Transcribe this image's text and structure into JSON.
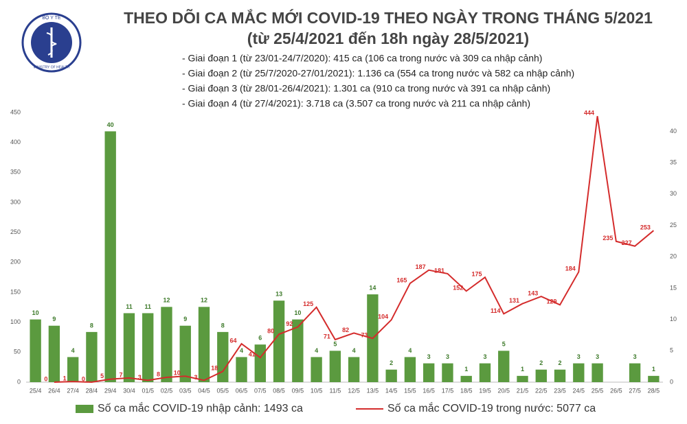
{
  "header": {
    "logo_top": "BỘ Y TẾ",
    "logo_bottom": "MINISTRY OF HEALTH",
    "notes": [
      "- Giai đoạn 1 (từ 23/01-24/7/2020): 415 ca (106 ca trong nước và 309 ca nhập cảnh)",
      "- Giai đoạn 2 (từ 25/7/2020-27/01/2021): 1.136 ca (554 ca trong nước và 582 ca nhập cảnh)",
      "- Giai đoạn 3 (từ 28/01-26/4/2021): 1.301 ca (910 ca trong nước và 391 ca nhập cảnh)",
      "- Giai đoạn 4 (từ 27/4/2021): 3.718 ca (3.507 ca trong nước và 211 ca nhập cảnh)"
    ]
  },
  "chart_data": {
    "type": "combo",
    "title": "THEO DÕI CA MẮC MỚI COVID-19 THEO NGÀY TRONG THÁNG 5/2021",
    "subtitle": "(từ 25/4/2021 đến 18h ngày 28/5/2021)",
    "categories": [
      "25/4",
      "26/4",
      "27/4",
      "28/4",
      "29/4",
      "30/4",
      "01/5",
      "02/5",
      "03/5",
      "04/5",
      "05/5",
      "06/5",
      "07/5",
      "08/5",
      "09/5",
      "10/5",
      "11/5",
      "12/5",
      "13/5",
      "14/5",
      "15/5",
      "16/5",
      "17/5",
      "18/5",
      "19/5",
      "20/5",
      "21/5",
      "22/5",
      "23/5",
      "24/5",
      "25/5",
      "26/5",
      "27/5",
      "28/5"
    ],
    "series": [
      {
        "name": "Số ca mắc COVID-19 nhập cảnh: 1493 ca",
        "type": "bar",
        "axis": "y2",
        "color": "#5b9a3f",
        "values": [
          10,
          9,
          4,
          8,
          40,
          11,
          11,
          12,
          9,
          12,
          8,
          4,
          6,
          13,
          10,
          4,
          5,
          4,
          14,
          2,
          4,
          3,
          3,
          1,
          3,
          5,
          1,
          2,
          2,
          3,
          3,
          null,
          3,
          1
        ]
      },
      {
        "name": "Số ca mắc COVID-19 trong nước: 5077 ca",
        "type": "line",
        "color": "#d42b2b",
        "values": [
          null,
          0,
          1,
          0,
          5,
          7,
          3,
          8,
          10,
          3,
          18,
          64,
          41,
          80,
          92,
          125,
          71,
          82,
          73,
          104,
          165,
          187,
          181,
          152,
          175,
          114,
          131,
          143,
          129,
          184,
          444,
          235,
          227,
          253
        ]
      }
    ],
    "ylim": [
      0,
      450
    ],
    "yticks": [
      0,
      50,
      100,
      150,
      200,
      250,
      300,
      350,
      400,
      450
    ],
    "y2lim": [
      0,
      43
    ],
    "y2ticks": [
      0,
      5,
      10,
      15,
      20,
      25,
      30,
      35,
      40
    ],
    "grid": false
  }
}
